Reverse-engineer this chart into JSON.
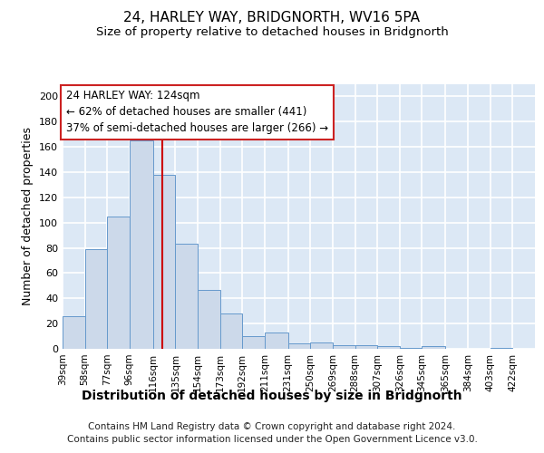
{
  "title1": "24, HARLEY WAY, BRIDGNORTH, WV16 5PA",
  "title2": "Size of property relative to detached houses in Bridgnorth",
  "xlabel": "Distribution of detached houses by size in Bridgnorth",
  "ylabel": "Number of detached properties",
  "footer1": "Contains HM Land Registry data © Crown copyright and database right 2024.",
  "footer2": "Contains public sector information licensed under the Open Government Licence v3.0.",
  "bin_edges": [
    39,
    58,
    77,
    96,
    116,
    135,
    154,
    173,
    192,
    211,
    231,
    250,
    269,
    288,
    307,
    326,
    345,
    365,
    384,
    403,
    422
  ],
  "bar_heights": [
    26,
    79,
    105,
    165,
    138,
    83,
    47,
    28,
    10,
    13,
    4,
    5,
    3,
    3,
    2,
    1,
    2,
    0,
    0,
    1
  ],
  "bar_color": "#ccd9ea",
  "bar_edge_color": "#6699cc",
  "vline_x": 124,
  "vline_color": "#cc0000",
  "annotation_line1": "24 HARLEY WAY: 124sqm",
  "annotation_line2": "← 62% of detached houses are smaller (441)",
  "annotation_line3": "37% of semi-detached houses are larger (266) →",
  "annotation_box_edgecolor": "#cc2222",
  "ylim": [
    0,
    210
  ],
  "yticks": [
    0,
    20,
    40,
    60,
    80,
    100,
    120,
    140,
    160,
    180,
    200
  ],
  "bg_color": "#dce8f5",
  "grid_color": "#ffffff",
  "fig_bg": "#ffffff",
  "title1_fontsize": 11,
  "title2_fontsize": 9.5,
  "xlabel_fontsize": 10,
  "ylabel_fontsize": 9,
  "tick_fontsize": 7.5,
  "footer_fontsize": 7.5,
  "ann_fontsize": 8.5
}
